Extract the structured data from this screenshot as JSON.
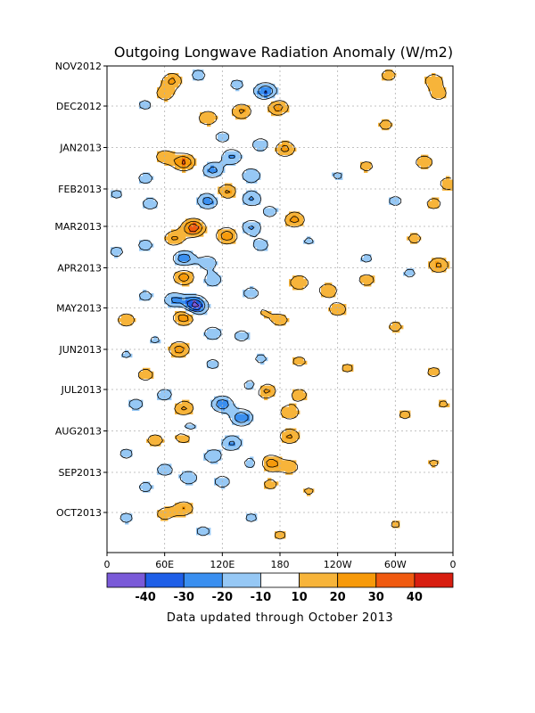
{
  "chart_data": {
    "type": "heatmap",
    "title": "Outgoing Longwave Radiation Anomaly (W/m2)",
    "y_tick_labels": [
      "NOV2012",
      "DEC2012",
      "JAN2013",
      "FEB2013",
      "MAR2013",
      "APR2013",
      "MAY2013",
      "JUN2013",
      "JUL2013",
      "AUG2013",
      "SEP2013",
      "OCT2013"
    ],
    "x_tick_labels": [
      "0",
      "60E",
      "120E",
      "180",
      "120W",
      "60W",
      "0"
    ],
    "x_range_degrees_east": [
      0,
      360
    ],
    "y_range": [
      "2012-11-01",
      "2013-10-31"
    ],
    "grid": true,
    "colorbar": {
      "labels": [
        "-40",
        "-30",
        "-20",
        "-10",
        "10",
        "20",
        "30",
        "40"
      ],
      "levels": [
        -40,
        -30,
        -20,
        -10,
        10,
        20,
        30,
        40
      ],
      "colors": [
        "#7a5ad8",
        "#1f5fe8",
        "#3a8ff0",
        "#96c8f5",
        "#ffffff",
        "#f7b43a",
        "#f79a0a",
        "#f05a10",
        "#d81e10"
      ]
    },
    "features": [
      {
        "lon": 60,
        "date": "2012-11-22",
        "v": 18
      },
      {
        "lon": 68,
        "date": "2012-11-12",
        "v": 22
      },
      {
        "lon": 95,
        "date": "2012-11-08",
        "v": -15
      },
      {
        "lon": 135,
        "date": "2012-11-15",
        "v": -14
      },
      {
        "lon": 165,
        "date": "2012-11-20",
        "v": -32
      },
      {
        "lon": 178,
        "date": "2012-12-02",
        "v": 25
      },
      {
        "lon": 140,
        "date": "2012-12-05",
        "v": 22
      },
      {
        "lon": 105,
        "date": "2012-12-10",
        "v": 20
      },
      {
        "lon": 40,
        "date": "2012-11-30",
        "v": -14
      },
      {
        "lon": 340,
        "date": "2012-11-12",
        "v": 18
      },
      {
        "lon": 345,
        "date": "2012-11-22",
        "v": 16
      },
      {
        "lon": 293,
        "date": "2012-11-08",
        "v": 15
      },
      {
        "lon": 290,
        "date": "2012-12-15",
        "v": 14
      },
      {
        "lon": 120,
        "date": "2012-12-24",
        "v": -15
      },
      {
        "lon": 160,
        "date": "2012-12-30",
        "v": -18
      },
      {
        "lon": 185,
        "date": "2013-01-02",
        "v": 24
      },
      {
        "lon": 80,
        "date": "2013-01-12",
        "v": 32
      },
      {
        "lon": 60,
        "date": "2013-01-08",
        "v": 18
      },
      {
        "lon": 130,
        "date": "2013-01-08",
        "v": -22
      },
      {
        "lon": 110,
        "date": "2013-01-18",
        "v": -24
      },
      {
        "lon": 150,
        "date": "2013-01-22",
        "v": -20
      },
      {
        "lon": 40,
        "date": "2013-01-24",
        "v": -15
      },
      {
        "lon": 330,
        "date": "2013-01-12",
        "v": 18
      },
      {
        "lon": 355,
        "date": "2013-01-28",
        "v": 17
      },
      {
        "lon": 270,
        "date": "2013-01-15",
        "v": 14
      },
      {
        "lon": 240,
        "date": "2013-01-22",
        "v": -12
      },
      {
        "lon": 125,
        "date": "2013-02-03",
        "v": 22
      },
      {
        "lon": 105,
        "date": "2013-02-10",
        "v": -26
      },
      {
        "lon": 150,
        "date": "2013-02-08",
        "v": -22
      },
      {
        "lon": 45,
        "date": "2013-02-12",
        "v": -16
      },
      {
        "lon": 10,
        "date": "2013-02-05",
        "v": -13
      },
      {
        "lon": 195,
        "date": "2013-02-24",
        "v": 24
      },
      {
        "lon": 170,
        "date": "2013-02-18",
        "v": -15
      },
      {
        "lon": 300,
        "date": "2013-02-10",
        "v": -14
      },
      {
        "lon": 340,
        "date": "2013-02-12",
        "v": 15
      },
      {
        "lon": 90,
        "date": "2013-03-02",
        "v": 38
      },
      {
        "lon": 70,
        "date": "2013-03-10",
        "v": 22
      },
      {
        "lon": 125,
        "date": "2013-03-08",
        "v": 28
      },
      {
        "lon": 150,
        "date": "2013-03-02",
        "v": -22
      },
      {
        "lon": 160,
        "date": "2013-03-15",
        "v": -16
      },
      {
        "lon": 40,
        "date": "2013-03-15",
        "v": -15
      },
      {
        "lon": 10,
        "date": "2013-03-20",
        "v": -14
      },
      {
        "lon": 80,
        "date": "2013-03-25",
        "v": -28
      },
      {
        "lon": 105,
        "date": "2013-03-28",
        "v": -18
      },
      {
        "lon": 320,
        "date": "2013-03-10",
        "v": 14
      },
      {
        "lon": 345,
        "date": "2013-03-30",
        "v": 22
      },
      {
        "lon": 270,
        "date": "2013-03-25",
        "v": -13
      },
      {
        "lon": 210,
        "date": "2013-03-12",
        "v": -12
      },
      {
        "lon": 80,
        "date": "2013-04-08",
        "v": 26
      },
      {
        "lon": 110,
        "date": "2013-04-10",
        "v": -18
      },
      {
        "lon": 200,
        "date": "2013-04-12",
        "v": 20
      },
      {
        "lon": 230,
        "date": "2013-04-18",
        "v": 19
      },
      {
        "lon": 270,
        "date": "2013-04-10",
        "v": 16
      },
      {
        "lon": 150,
        "date": "2013-04-20",
        "v": -16
      },
      {
        "lon": 40,
        "date": "2013-04-22",
        "v": -14
      },
      {
        "lon": 90,
        "date": "2013-04-28",
        "v": -34
      },
      {
        "lon": 70,
        "date": "2013-04-25",
        "v": -22
      },
      {
        "lon": 315,
        "date": "2013-04-05",
        "v": -13
      },
      {
        "lon": 80,
        "date": "2013-05-08",
        "v": 28
      },
      {
        "lon": 95,
        "date": "2013-05-01",
        "v": -16
      },
      {
        "lon": 150,
        "date": "2013-05-08",
        "v": -14
      },
      {
        "lon": 20,
        "date": "2013-05-10",
        "v": 18
      },
      {
        "lon": 160,
        "date": "2013-05-05",
        "v": 15
      },
      {
        "lon": 240,
        "date": "2013-05-02",
        "v": 18
      },
      {
        "lon": 180,
        "date": "2013-05-10",
        "v": 16
      },
      {
        "lon": 110,
        "date": "2013-05-20",
        "v": -18
      },
      {
        "lon": 140,
        "date": "2013-05-22",
        "v": -15
      },
      {
        "lon": 50,
        "date": "2013-05-25",
        "v": -12
      },
      {
        "lon": 300,
        "date": "2013-05-15",
        "v": 14
      },
      {
        "lon": 75,
        "date": "2013-06-01",
        "v": 25
      },
      {
        "lon": 20,
        "date": "2013-06-05",
        "v": -12
      },
      {
        "lon": 110,
        "date": "2013-06-12",
        "v": -14
      },
      {
        "lon": 160,
        "date": "2013-06-08",
        "v": -13
      },
      {
        "lon": 200,
        "date": "2013-06-10",
        "v": 14
      },
      {
        "lon": 250,
        "date": "2013-06-15",
        "v": 13
      },
      {
        "lon": 40,
        "date": "2013-06-20",
        "v": 16
      },
      {
        "lon": 340,
        "date": "2013-06-18",
        "v": 14
      },
      {
        "lon": 150,
        "date": "2013-06-28",
        "v": -16
      },
      {
        "lon": 165,
        "date": "2013-07-02",
        "v": 24
      },
      {
        "lon": 200,
        "date": "2013-07-05",
        "v": 16
      },
      {
        "lon": 120,
        "date": "2013-07-12",
        "v": -28
      },
      {
        "lon": 80,
        "date": "2013-07-15",
        "v": 22
      },
      {
        "lon": 60,
        "date": "2013-07-05",
        "v": -16
      },
      {
        "lon": 30,
        "date": "2013-07-12",
        "v": -15
      },
      {
        "lon": 190,
        "date": "2013-07-18",
        "v": 20
      },
      {
        "lon": 140,
        "date": "2013-07-22",
        "v": -30
      },
      {
        "lon": 85,
        "date": "2013-07-30",
        "v": -18
      },
      {
        "lon": 310,
        "date": "2013-07-20",
        "v": 13
      },
      {
        "lon": 350,
        "date": "2013-07-12",
        "v": 12
      },
      {
        "lon": 80,
        "date": "2013-08-05",
        "v": 20
      },
      {
        "lon": 50,
        "date": "2013-08-08",
        "v": 16
      },
      {
        "lon": 130,
        "date": "2013-08-10",
        "v": -22
      },
      {
        "lon": 190,
        "date": "2013-08-05",
        "v": 22
      },
      {
        "lon": 110,
        "date": "2013-08-20",
        "v": -18
      },
      {
        "lon": 20,
        "date": "2013-08-18",
        "v": -14
      },
      {
        "lon": 170,
        "date": "2013-08-25",
        "v": 26
      },
      {
        "lon": 190,
        "date": "2013-08-28",
        "v": 18
      },
      {
        "lon": 150,
        "date": "2013-08-25",
        "v": -15
      },
      {
        "lon": 60,
        "date": "2013-08-30",
        "v": -16
      },
      {
        "lon": 340,
        "date": "2013-08-25",
        "v": 12
      },
      {
        "lon": 120,
        "date": "2013-09-08",
        "v": -16
      },
      {
        "lon": 85,
        "date": "2013-09-05",
        "v": -18
      },
      {
        "lon": 40,
        "date": "2013-09-12",
        "v": -14
      },
      {
        "lon": 170,
        "date": "2013-09-10",
        "v": 14
      },
      {
        "lon": 210,
        "date": "2013-09-15",
        "v": 12
      },
      {
        "lon": 80,
        "date": "2013-09-28",
        "v": 20
      },
      {
        "lon": 60,
        "date": "2013-10-02",
        "v": 16
      },
      {
        "lon": 20,
        "date": "2013-10-05",
        "v": -14
      },
      {
        "lon": 150,
        "date": "2013-10-05",
        "v": -13
      },
      {
        "lon": 100,
        "date": "2013-10-15",
        "v": -14
      },
      {
        "lon": 300,
        "date": "2013-10-10",
        "v": 12
      },
      {
        "lon": 180,
        "date": "2013-10-18",
        "v": 13
      }
    ]
  },
  "footer": {
    "note": "Data updated through October 2013"
  }
}
